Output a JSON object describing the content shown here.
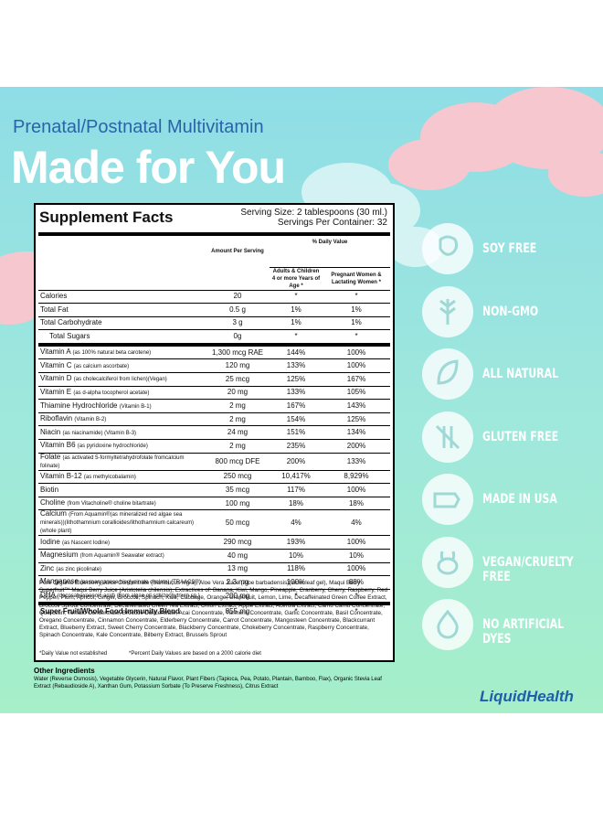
{
  "header": {
    "subtitle": "Prenatal/Postnatal Multivitamin",
    "title": "Made for You"
  },
  "facts": {
    "title": "Supplement Facts",
    "serving_size": "Serving Size: 2 tablespoons (30 ml.)",
    "servings": "Servings Per Container: 32",
    "col_amount": "Amount Per Serving",
    "col_dv": "% Daily Value",
    "col_adults": "Adults & Children 4 or more Years of Age *",
    "col_pregnant": "Pregnant Women & Lactating Women *",
    "rows": [
      {
        "name": "Calories",
        "amount": "20",
        "adults": "*",
        "pregnant": "*"
      },
      {
        "name": "Total Fat",
        "amount": "0.5 g",
        "adults": "1%",
        "pregnant": "1%"
      },
      {
        "name": "Total Carbohydrate",
        "amount": "3 g",
        "adults": "1%",
        "pregnant": "1%"
      },
      {
        "name": "Total Sugars",
        "amount": "0g",
        "adults": "*",
        "pregnant": "*"
      },
      {
        "name": "Vitamin A",
        "qualifier": "(as 100% natural beta carotene)",
        "amount": "1,300 mcg RAE",
        "adults": "144%",
        "pregnant": "100%"
      },
      {
        "name": "Vitamin C",
        "qualifier": "(as calcium ascorbate)",
        "amount": "120 mg",
        "adults": "133%",
        "pregnant": "100%"
      },
      {
        "name": "Vitamin D",
        "qualifier": "(as cholecalciferol from lichen)(Vegan)",
        "amount": "25 mcg",
        "adults": "125%",
        "pregnant": "167%"
      },
      {
        "name": "Vitamin E",
        "qualifier": "(as d-alpha tocopherol acetate)",
        "amount": "20 mg",
        "adults": "133%",
        "pregnant": "105%"
      },
      {
        "name": "Thiamine Hydrochloride",
        "qualifier": "(Vitamin B-1)",
        "amount": "2 mg",
        "adults": "167%",
        "pregnant": "143%"
      },
      {
        "name": "Riboflavin",
        "qualifier": "(Vitamin B-2)",
        "amount": "2 mg",
        "adults": "154%",
        "pregnant": "125%"
      },
      {
        "name": "Niacin",
        "qualifier": "(as niacinamide) (Vitamin B-3)",
        "amount": "24 mg",
        "adults": "151%",
        "pregnant": "134%"
      },
      {
        "name": "Vitamin B6",
        "qualifier": "(as pyridoxine hydrochloride)",
        "amount": "2 mg",
        "adults": "235%",
        "pregnant": "200%"
      },
      {
        "name": "Folate",
        "qualifier": "(as activated 5-formyltetrahydrofolate fromcalcium folinate)",
        "amount": "800 mcg DFE",
        "adults": "200%",
        "pregnant": "133%"
      },
      {
        "name": "Vitamin B-12",
        "qualifier": "(as methylcobalamin)",
        "amount": "250 mcg",
        "adults": "10,417%",
        "pregnant": "8,929%"
      },
      {
        "name": "Biotin",
        "amount": "35 mcg",
        "adults": "117%",
        "pregnant": "100%"
      },
      {
        "name": "Choline",
        "qualifier": "(from Vitacholine® choline bitartrate)",
        "amount": "100 mg",
        "adults": "18%",
        "pregnant": "18%"
      },
      {
        "name": "Calcium",
        "qualifier": "(From Aquamin®(as mineralized red algae sea minerals))(lithothamnium corallioides/lithothamnium calcareum)(whole plant)",
        "amount": "50 mcg",
        "adults": "4%",
        "pregnant": "4%"
      },
      {
        "name": "Iodine",
        "qualifier": "(as Nascent Iodine)",
        "amount": "290 mcg",
        "adults": "193%",
        "pregnant": "100%"
      },
      {
        "name": "Magnesium",
        "qualifier": "(from Aquamin® Seawater extract)",
        "amount": "40 mg",
        "adults": "10%",
        "pregnant": "10%"
      },
      {
        "name": "Zinc",
        "qualifier": "(as zinc picolinate)",
        "amount": "13 mg",
        "adults": "118%",
        "pregnant": "100%"
      },
      {
        "name": "Manganese",
        "qualifier": "(as manganese bisglycinate chelate) (TRAACS®)",
        "amount": "2.3 mg",
        "adults": "100%",
        "pregnant": "88%"
      },
      {
        "name": "DHA",
        "qualifier": "(docosahexaenoic acid) (from algae oil schizochytrium sp.)",
        "amount": "200 mg",
        "adults": "*",
        "pregnant": "*"
      },
      {
        "name": "Super Fruit/Whole Food Immunity Blend",
        "amount": "855 mg",
        "adults": "*",
        "pregnant": "*"
      }
    ],
    "blend": "Pure Organic Elderberry Juice Concentrate (Sambucus nigra), Aloe Vera Juice (Aloe barbadensis)(inner leaf gel), Maqui Berry Superfruit™ Maqui Berry Juice (Aristotelia chilensis), Extractives of: Banana, Kiwi, Mango, Pineapple, Cranberry, Cherry, Raspberry, Red Pepper, Plum, Apricot, Ginger, Broccoli, Spinach, Kale, Cabbage, Orange, Grapefruit, Lemon, Lime, Decaffeinated Green Coffee Extract, Broccoli Sprout Concentrate, Decaffeinated Green Tea Extract, Onion Extract, Apple Extract, Acerola Extract, Camu Camu Concentrate, Quercetin, Tomato Concentrate, Broccoli Concentrate, Acai Concentrate, Turmeric Concentrate, Garlic Concentrate, Basil Concentrate, Oregano Concentrate, Cinnamon Concentrate, Elderberry Concentrate, Carrot Concentrate, Mangosteen Concentrate, Blackcurrant Extract, Blueberry Extract, Sweet Cherry Concentrate, Blackberry Concentrate, Chokeberry Concentrate, Raspberry Concentrate, Spinach Concentrate, Kale Concentrate, Bilberry Extract, Brussels Sprout",
    "note_dv": "*Daily Value not established",
    "note_calorie": "*Percent Daily Values are based on a 2000 calorie diet"
  },
  "other": {
    "title": "Other Ingredients",
    "text": "Water (Reverse Osmosis), Vegetable Glycerin, Natural Flavor, Plant Fibers (Tapioca, Pea, Potato, Plantain, Bamboo, Flax), Organic Stevia Leaf Extract (Rebaudioside A), Xanthan Gum, Potassium Sorbate (To Preserve Freshness), Citrus Extract"
  },
  "badges": [
    "SOY FREE",
    "NON-GMO",
    "ALL NATURAL",
    "GLUTEN FREE",
    "MADE IN USA",
    "VEGAN/CRUELTY FREE",
    "NO ARTIFICIAL DYES"
  ],
  "brand": "LiquidHealth"
}
